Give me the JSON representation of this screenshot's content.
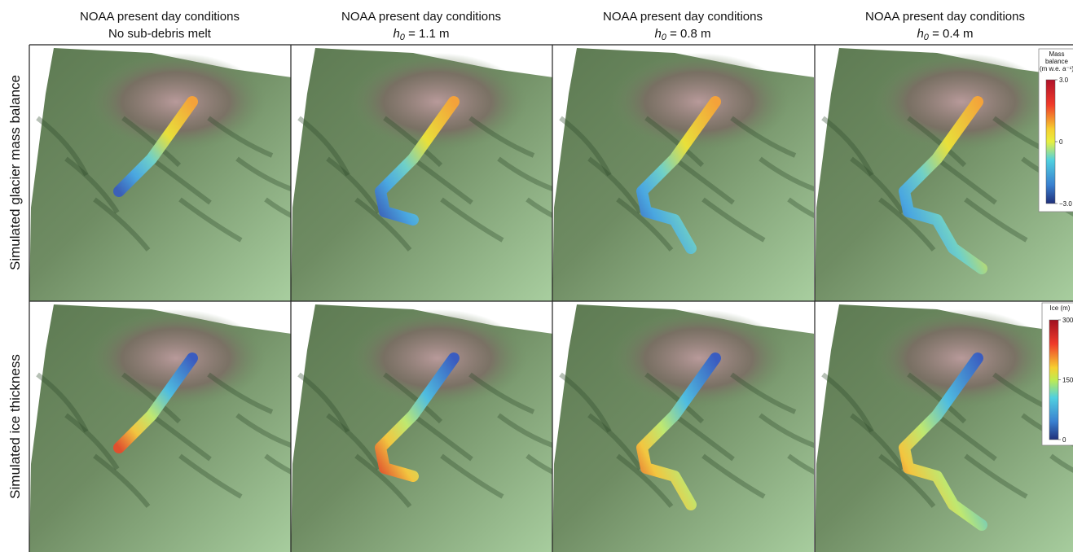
{
  "figure": {
    "columns": [
      {
        "title": "NOAA present day conditions",
        "subtitle": "No sub-debris melt"
      },
      {
        "title": "NOAA present day conditions",
        "subtitle_variable": "h",
        "subtitle_subscript": "0",
        "subtitle_text": " = 1.1 m"
      },
      {
        "title": "NOAA present day conditions",
        "subtitle_variable": "h",
        "subtitle_subscript": "0",
        "subtitle_text": " = 0.8 m"
      },
      {
        "title": "NOAA present day conditions",
        "subtitle_variable": "h",
        "subtitle_subscript": "0",
        "subtitle_text": " = 0.4 m"
      }
    ],
    "rows": [
      "Simulated glacier mass balance",
      "Simulated ice thickness"
    ],
    "colorbars": [
      {
        "title_lines": [
          "Mass",
          "balance",
          "(m w.e. a⁻¹)"
        ],
        "clim": [
          -3,
          3
        ],
        "ticks": [
          {
            "value": 3,
            "label": "3.0"
          },
          0,
          {
            "value": -3,
            "label": "−3.0"
          }
        ]
      },
      {
        "title_lines": [
          "Ice (m)"
        ],
        "clim": [
          0,
          300
        ],
        "ticks": [
          300,
          150,
          0
        ]
      }
    ]
  }
}
